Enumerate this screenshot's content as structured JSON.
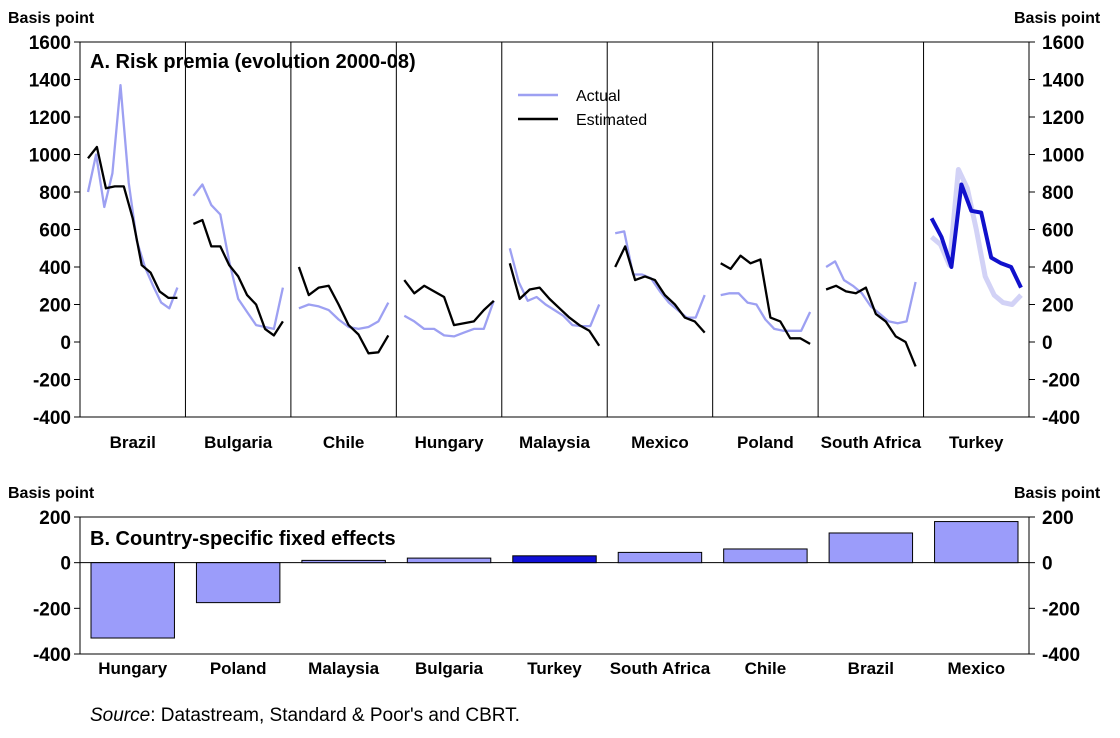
{
  "colors": {
    "actual": "#9da0f2",
    "estimated": "#000000",
    "highlight": "#1111cc",
    "highlight_light": "#d2d2f6",
    "bar": "#9b9cfa",
    "bar_highlight": "#1010d6"
  },
  "chart_data": [
    {
      "type": "line",
      "title": "A. Risk premia (evolution 2000-08)",
      "ylabel_left": "Basis point",
      "ylabel_right": "Basis point",
      "ylim": [
        -400,
        1600
      ],
      "yticks": [
        "1600",
        "1400",
        "1200",
        "1000",
        "800",
        "600",
        "400",
        "200",
        "0",
        "-200",
        "-400"
      ],
      "legend": {
        "position": "top-center",
        "entries": [
          "Actual",
          "Estimated"
        ]
      },
      "highlight_country": "Turkey",
      "panels": [
        {
          "country": "Brazil",
          "actual": [
            800,
            1000,
            720,
            900,
            1370,
            850,
            540,
            400,
            300,
            210,
            180,
            290
          ],
          "estimated": [
            980,
            1040,
            820,
            830,
            830,
            660,
            410,
            370,
            270,
            235,
            235
          ]
        },
        {
          "country": "Bulgaria",
          "actual": [
            780,
            840,
            730,
            680,
            430,
            230,
            160,
            90,
            80,
            70,
            290
          ],
          "estimated": [
            630,
            650,
            510,
            510,
            410,
            350,
            250,
            200,
            70,
            35,
            110
          ]
        },
        {
          "country": "Chile",
          "actual": [
            180,
            200,
            190,
            170,
            120,
            80,
            70,
            80,
            110,
            210
          ],
          "estimated": [
            400,
            250,
            290,
            300,
            200,
            90,
            40,
            -60,
            -55,
            35
          ]
        },
        {
          "country": "Hungary",
          "actual": [
            140,
            110,
            70,
            70,
            35,
            30,
            50,
            70,
            70,
            220
          ],
          "estimated": [
            330,
            260,
            300,
            270,
            240,
            90,
            100,
            110,
            170,
            220
          ]
        },
        {
          "country": "Malaysia",
          "actual": [
            500,
            320,
            220,
            240,
            200,
            170,
            140,
            90,
            85,
            85,
            200
          ],
          "estimated": [
            420,
            230,
            280,
            290,
            230,
            180,
            130,
            90,
            60,
            -20
          ]
        },
        {
          "country": "Mexico",
          "actual": [
            580,
            590,
            360,
            360,
            340,
            270,
            210,
            170,
            130,
            130,
            250
          ],
          "estimated": [
            400,
            510,
            330,
            350,
            330,
            250,
            200,
            130,
            110,
            50
          ]
        },
        {
          "country": "Poland",
          "actual": [
            250,
            260,
            260,
            210,
            200,
            120,
            70,
            60,
            60,
            60,
            160
          ],
          "estimated": [
            420,
            390,
            460,
            420,
            440,
            130,
            110,
            20,
            20,
            -10
          ]
        },
        {
          "country": "South Africa",
          "actual": [
            400,
            430,
            330,
            300,
            260,
            190,
            150,
            110,
            100,
            110,
            320
          ],
          "estimated": [
            280,
            300,
            270,
            260,
            290,
            150,
            110,
            30,
            0,
            -130
          ]
        },
        {
          "country": "Turkey",
          "actual": [
            560,
            520,
            410,
            920,
            820,
            600,
            350,
            250,
            210,
            200,
            250
          ],
          "estimated": [
            660,
            560,
            400,
            840,
            700,
            690,
            450,
            420,
            400,
            290
          ]
        }
      ]
    },
    {
      "type": "bar",
      "title": "B. Country-specific fixed effects",
      "ylabel_left": "Basis point",
      "ylabel_right": "Basis point",
      "ylim": [
        -400,
        200
      ],
      "yticks": [
        "200",
        "0",
        "-200",
        "-400"
      ],
      "categories": [
        "Hungary",
        "Poland",
        "Malaysia",
        "Bulgaria",
        "Turkey",
        "South Africa",
        "Chile",
        "Brazil",
        "Mexico"
      ],
      "values": [
        -330,
        -175,
        10,
        20,
        30,
        45,
        60,
        130,
        180
      ],
      "highlight_category": "Turkey"
    }
  ],
  "source": {
    "label": "Source",
    "text": ": Datastream, Standard & Poor's and CBRT."
  }
}
